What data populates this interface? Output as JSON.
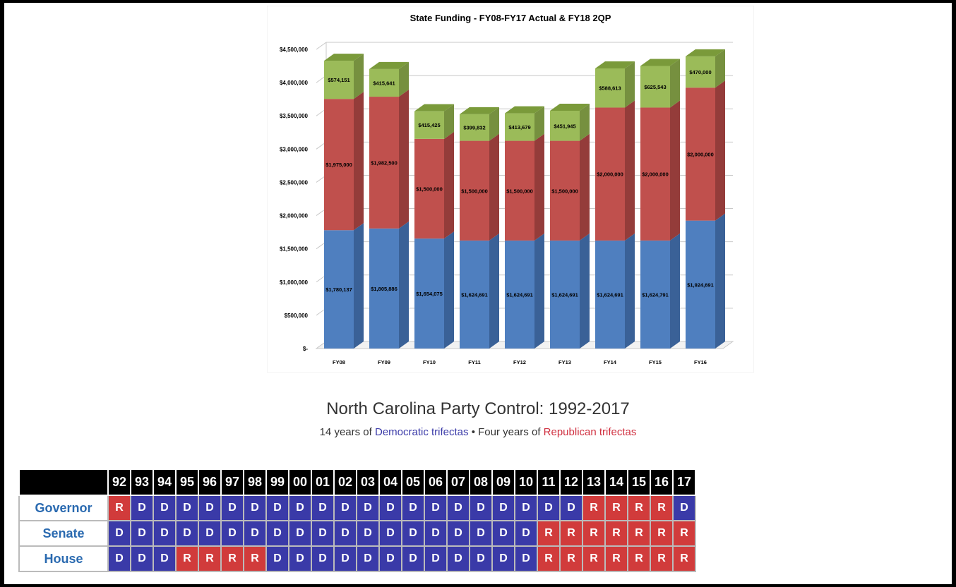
{
  "chart_data": {
    "type": "bar",
    "stacked": true,
    "title": "State Funding - FY08-FY17 Actual & FY18 2QP",
    "categories": [
      "FY08",
      "FY09",
      "FY10",
      "FY11",
      "FY12",
      "FY13",
      "FY14",
      "FY15",
      "FY16"
    ],
    "ylim": [
      0,
      4500000
    ],
    "yticks": [
      "$-",
      "$500,000",
      "$1,000,000",
      "$1,500,000",
      "$2,000,000",
      "$2,500,000",
      "$3,000,000",
      "$3,500,000",
      "$4,000,000",
      "$4,500,000"
    ],
    "grid": true,
    "series": [
      {
        "values": [
          1780137,
          1805886,
          1654075,
          1624691,
          1624691,
          1624691,
          1624691,
          1624791,
          1924691
        ],
        "labels": [
          "$1,780,137",
          "$1,805,886",
          "$1,654,075",
          "$1,624,691",
          "$1,624,691",
          "$1,624,691",
          "$1,624,691",
          "$1,624,791",
          "$1,924,691"
        ],
        "color": "#4f7fbf",
        "side": "#3a6197",
        "top": "#6e9ad0"
      },
      {
        "values": [
          1975000,
          1982500,
          1500000,
          1500000,
          1500000,
          1500000,
          2000000,
          2000000,
          2000000
        ],
        "labels": [
          "$1,975,000",
          "$1,982,500",
          "$1,500,000",
          "$1,500,000",
          "$1,500,000",
          "$1,500,000",
          "$2,000,000",
          "$2,000,000",
          "$2,000,000"
        ],
        "color": "#c0504d",
        "side": "#943c3a",
        "top": "#d47472"
      },
      {
        "values": [
          574151,
          415641,
          415425,
          399832,
          413679,
          451945,
          588613,
          625543,
          470000
        ],
        "labels": [
          "$574,151",
          "$415,641",
          "$415,425",
          "$399,832",
          "$413,679",
          "$451,945",
          "$588,613",
          "$625,543",
          "$470,000"
        ],
        "color": "#9bbb59",
        "side": "#76903f",
        "top": "#7a9a3a"
      }
    ]
  },
  "party_control": {
    "title": "North Carolina Party Control: 1992-2017",
    "subtitle_prefix": "14 years of ",
    "subtitle_dem": "Democratic trifectas",
    "subtitle_sep": " • Four years of ",
    "subtitle_rep": "Republican trifectas",
    "years": [
      "92",
      "93",
      "94",
      "95",
      "96",
      "97",
      "98",
      "99",
      "00",
      "01",
      "02",
      "03",
      "04",
      "05",
      "06",
      "07",
      "08",
      "09",
      "10",
      "11",
      "12",
      "13",
      "14",
      "15",
      "16",
      "17"
    ],
    "rows": [
      {
        "label": "Governor",
        "values": [
          "R",
          "D",
          "D",
          "D",
          "D",
          "D",
          "D",
          "D",
          "D",
          "D",
          "D",
          "D",
          "D",
          "D",
          "D",
          "D",
          "D",
          "D",
          "D",
          "D",
          "D",
          "R",
          "R",
          "R",
          "R",
          "D"
        ]
      },
      {
        "label": "Senate",
        "values": [
          "D",
          "D",
          "D",
          "D",
          "D",
          "D",
          "D",
          "D",
          "D",
          "D",
          "D",
          "D",
          "D",
          "D",
          "D",
          "D",
          "D",
          "D",
          "D",
          "R",
          "R",
          "R",
          "R",
          "R",
          "R",
          "R"
        ]
      },
      {
        "label": "House",
        "values": [
          "D",
          "D",
          "D",
          "R",
          "R",
          "R",
          "R",
          "D",
          "D",
          "D",
          "D",
          "D",
          "D",
          "D",
          "D",
          "D",
          "D",
          "D",
          "D",
          "R",
          "R",
          "R",
          "R",
          "R",
          "R",
          "R"
        ]
      }
    ],
    "colors": {
      "D": "#3a3aa8",
      "R": "#d13b3b"
    }
  }
}
